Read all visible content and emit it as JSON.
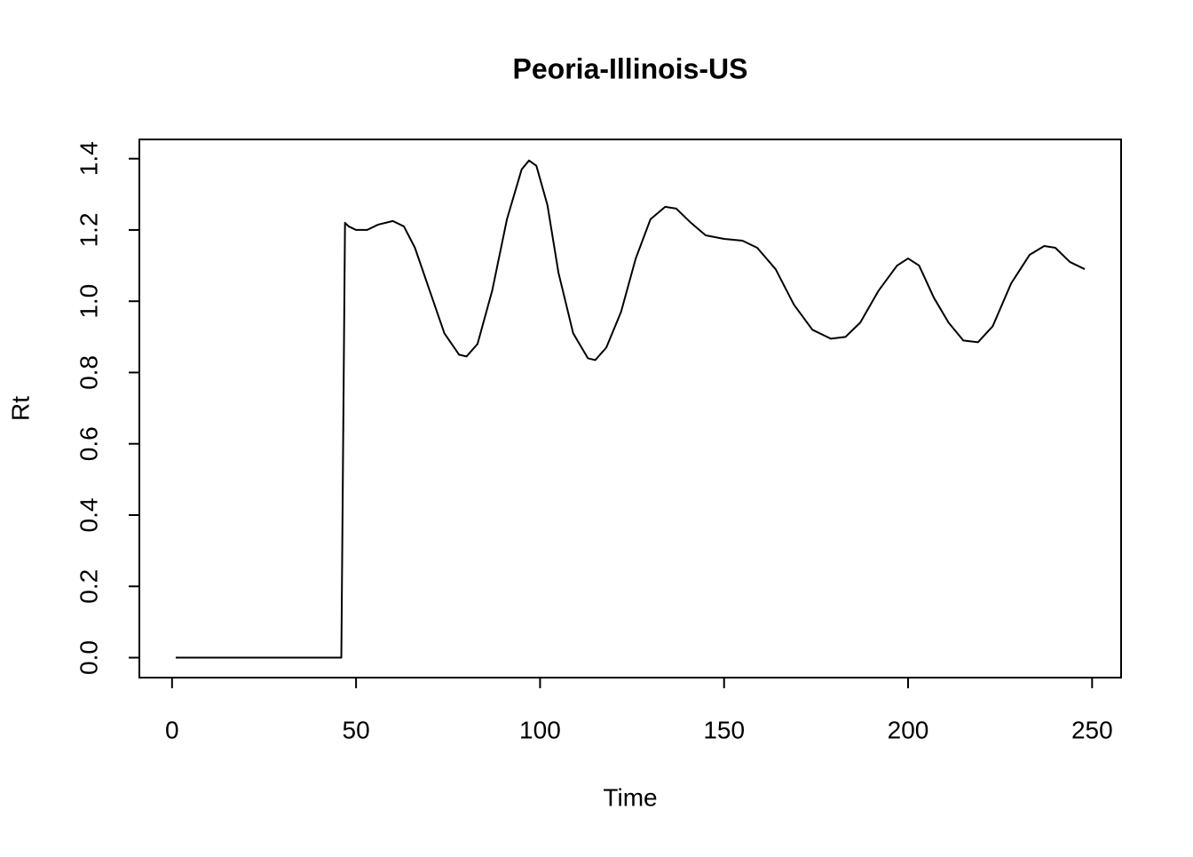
{
  "chart_data": {
    "type": "line",
    "title": "Peoria-Illinois-US",
    "x_label": "Time",
    "y_label": "Rt",
    "x": [
      1,
      46,
      47,
      48,
      50,
      53,
      56,
      60,
      63,
      66,
      70,
      74,
      78,
      80,
      83,
      87,
      91,
      95,
      97,
      99,
      102,
      105,
      109,
      113,
      115,
      118,
      122,
      126,
      130,
      134,
      137,
      141,
      145,
      150,
      155,
      159,
      164,
      169,
      174,
      179,
      183,
      187,
      192,
      197,
      200,
      203,
      207,
      211,
      215,
      219,
      223,
      228,
      233,
      237,
      240,
      244,
      248
    ],
    "series": [
      {
        "color": "#000000",
        "values": [
          0,
          0,
          1.22,
          1.21,
          1.2,
          1.2,
          1.215,
          1.225,
          1.21,
          1.15,
          1.03,
          0.91,
          0.85,
          0.845,
          0.88,
          1.03,
          1.23,
          1.37,
          1.395,
          1.38,
          1.27,
          1.08,
          0.91,
          0.84,
          0.835,
          0.87,
          0.97,
          1.12,
          1.23,
          1.265,
          1.26,
          1.22,
          1.185,
          1.175,
          1.17,
          1.15,
          1.09,
          0.99,
          0.92,
          0.895,
          0.9,
          0.94,
          1.03,
          1.1,
          1.12,
          1.1,
          1.01,
          0.94,
          0.89,
          0.885,
          0.93,
          1.05,
          1.13,
          1.155,
          1.15,
          1.11,
          1.09
        ]
      }
    ],
    "xlim": [
      -8.88,
      257.88
    ],
    "xticks": [
      0,
      50,
      100,
      150,
      200,
      250
    ],
    "ylim": [
      -0.056,
      1.454
    ],
    "yticks": [
      {
        "value": 0,
        "label": "0.0"
      },
      0.2,
      0.4,
      0.6,
      0.8,
      {
        "value": 1,
        "label": "1.0"
      },
      1.2,
      1.4
    ]
  }
}
